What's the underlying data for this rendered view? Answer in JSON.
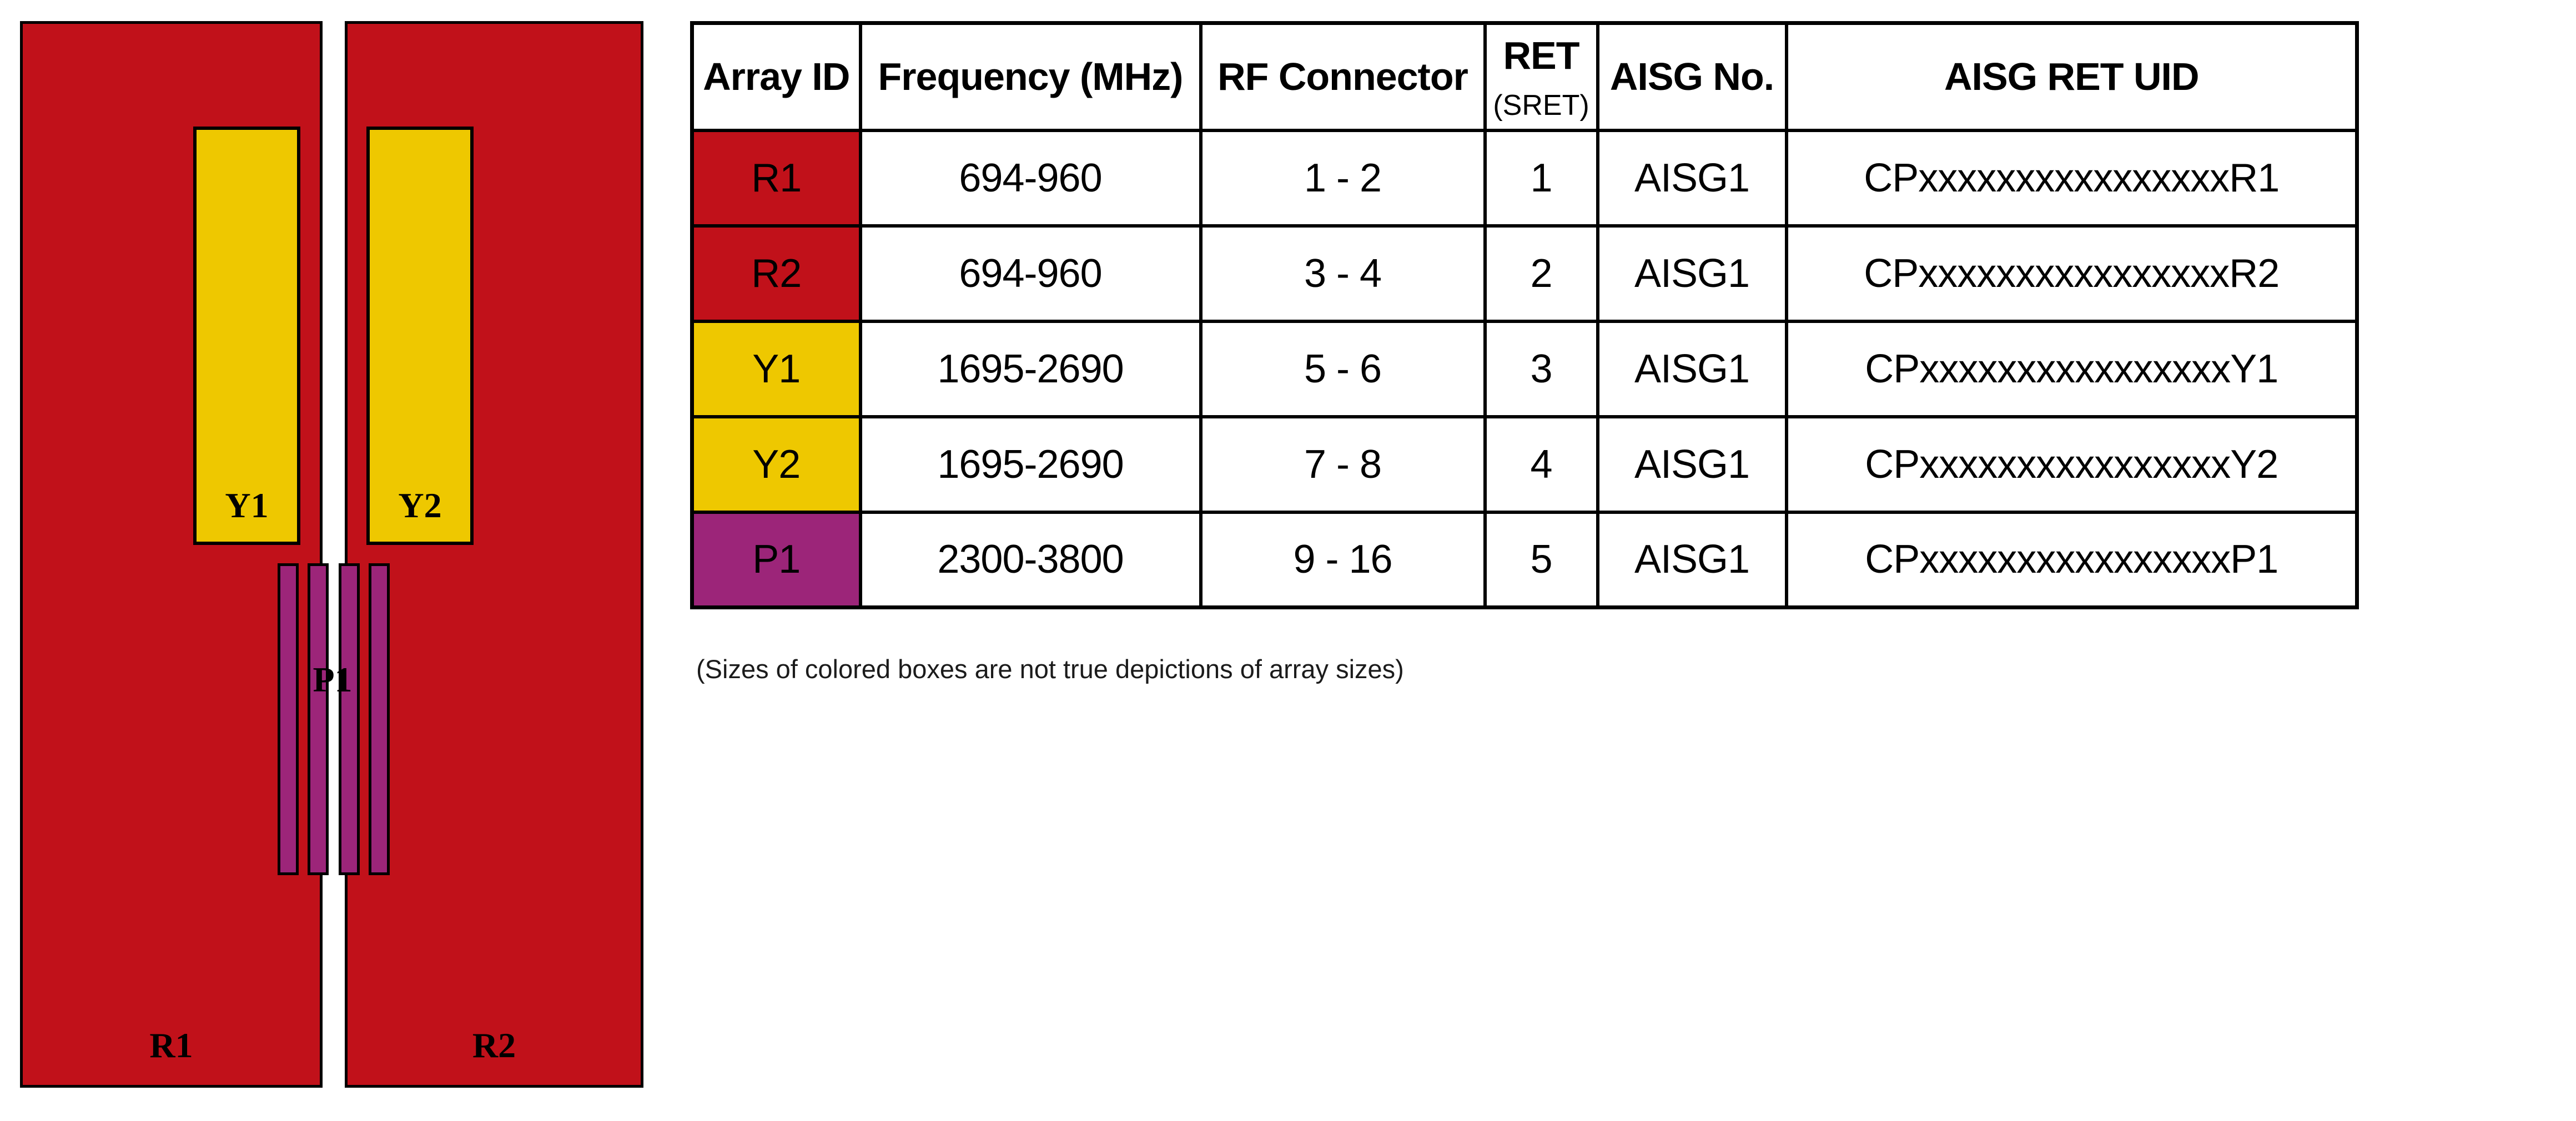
{
  "diagram": {
    "colors": {
      "red": "#C1111A",
      "yellow": "#EEC800",
      "purple": "#9C2579",
      "outline": "#000000"
    },
    "red_arrays": [
      {
        "label": "R1"
      },
      {
        "label": "R2"
      }
    ],
    "yellow_arrays": [
      {
        "label": "Y1"
      },
      {
        "label": "Y2"
      }
    ],
    "purple_array": {
      "label": "P1"
    }
  },
  "table": {
    "headers": {
      "array_id": "Array ID",
      "frequency": "Frequency (MHz)",
      "rf_connector": "RF Connector",
      "ret_line1": "RET",
      "ret_line2": "(SRET)",
      "aisg_no": "AISG No.",
      "aisg_ret_uid": "AISG RET UID"
    },
    "rows": [
      {
        "array_id": "R1",
        "color": "#C1111A",
        "frequency": "694-960",
        "rf_connector": "1 - 2",
        "ret": "1",
        "aisg_no": "AISG1",
        "aisg_ret_uid": "CPxxxxxxxxxxxxxxxxR1"
      },
      {
        "array_id": "R2",
        "color": "#C1111A",
        "frequency": "694-960",
        "rf_connector": "3 - 4",
        "ret": "2",
        "aisg_no": "AISG1",
        "aisg_ret_uid": "CPxxxxxxxxxxxxxxxxR2"
      },
      {
        "array_id": "Y1",
        "color": "#EEC800",
        "frequency": "1695-2690",
        "rf_connector": "5 - 6",
        "ret": "3",
        "aisg_no": "AISG1",
        "aisg_ret_uid": "CPxxxxxxxxxxxxxxxxY1"
      },
      {
        "array_id": "Y2",
        "color": "#EEC800",
        "frequency": "1695-2690",
        "rf_connector": "7 - 8",
        "ret": "4",
        "aisg_no": "AISG1",
        "aisg_ret_uid": "CPxxxxxxxxxxxxxxxxY2"
      },
      {
        "array_id": "P1",
        "color": "#9C2579",
        "frequency": "2300-3800",
        "rf_connector": "9 - 16",
        "ret": "5",
        "aisg_no": "AISG1",
        "aisg_ret_uid": "CPxxxxxxxxxxxxxxxxP1"
      }
    ]
  },
  "footnote": "(Sizes of colored boxes are not true depictions of array sizes)"
}
